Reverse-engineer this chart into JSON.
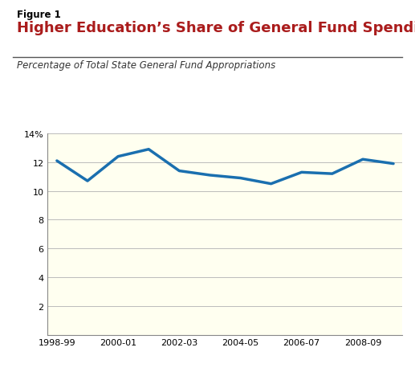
{
  "figure_label": "Figure 1",
  "title": "Higher Education’s Share of General Fund Spending",
  "subtitle": "Percentage of Total State General Fund Appropriations",
  "title_color": "#aa1c1c",
  "figure_label_color": "#000000",
  "subtitle_color": "#333333",
  "line_color": "#1a6faf",
  "line_width": 2.5,
  "background_outer": "#ffffff",
  "background_plot": "#fffff0",
  "grid_color": "#bbbbbb",
  "x_tick_labels": [
    "1998-99",
    "2000-01",
    "2002-03",
    "2004-05",
    "2006-07",
    "2008-09"
  ],
  "y_values": [
    12.1,
    10.7,
    12.4,
    12.9,
    11.4,
    11.1,
    10.9,
    10.5,
    11.3,
    11.2,
    12.2,
    11.9
  ],
  "ylim": [
    0,
    14
  ],
  "yticks": [
    0,
    2,
    4,
    6,
    8,
    10,
    12,
    14
  ],
  "ytick_labels": [
    "",
    "2",
    "4",
    "6",
    "8",
    "10",
    "12",
    "14%"
  ]
}
